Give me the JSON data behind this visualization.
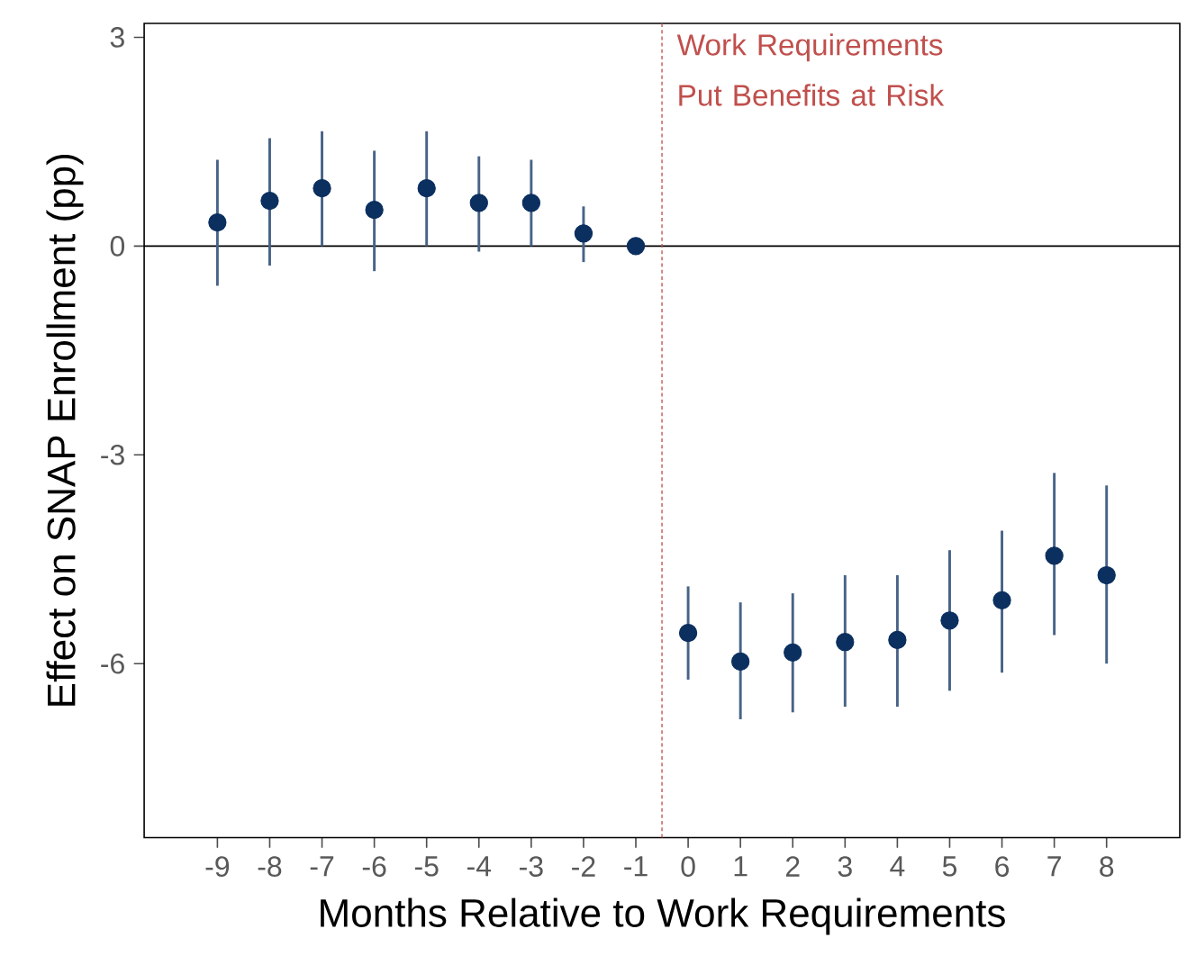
{
  "chart_data": {
    "type": "scatter",
    "xlabel": "Months Relative to Work Requirements",
    "ylabel": "Effect on SNAP Enrollment (pp)",
    "x": [
      -9,
      -8,
      -7,
      -6,
      -5,
      -4,
      -3,
      -2,
      -1,
      0,
      1,
      2,
      3,
      4,
      5,
      6,
      7,
      8
    ],
    "series": [
      {
        "color": "#0b2f5f",
        "values": [
          0.34,
          0.65,
          0.83,
          0.52,
          0.83,
          0.62,
          0.62,
          0.18,
          0,
          -5.56,
          -5.97,
          -5.84,
          -5.69,
          -5.66,
          -5.38,
          -5.09,
          -4.45,
          -4.73
        ],
        "errors": [
          [
            -0.57,
            1.24
          ],
          [
            -0.28,
            1.55
          ],
          [
            0,
            1.65
          ],
          [
            -0.36,
            1.37
          ],
          [
            0,
            1.65
          ],
          [
            -0.08,
            1.29
          ],
          [
            0,
            1.24
          ],
          [
            -0.23,
            0.57
          ],
          null,
          [
            -6.23,
            -4.89
          ],
          [
            -6.8,
            -5.12
          ],
          [
            -6.7,
            -4.99
          ],
          [
            -6.62,
            -4.73
          ],
          [
            -6.62,
            -4.73
          ],
          [
            -6.39,
            -4.37
          ],
          [
            -6.13,
            -4.09
          ],
          [
            -5.59,
            -3.26
          ],
          [
            -6.0,
            -3.44
          ]
        ]
      }
    ],
    "xlim": [
      -10.4,
      9.4
    ],
    "ylim": [
      -8.5,
      3.2
    ],
    "xticks": [
      -9,
      -8,
      -7,
      -6,
      -5,
      -4,
      -3,
      -2,
      -1,
      0,
      1,
      2,
      3,
      4,
      5,
      6,
      7,
      8
    ],
    "yticks": [
      3,
      0,
      -3,
      -6
    ],
    "ref_lines": [
      {
        "axis": "y",
        "value": 0,
        "color": "#000000",
        "line_style": "solid"
      },
      {
        "axis": "x",
        "value": -0.5,
        "color": "#c0504d",
        "line_style": "dashed",
        "label": "Work Requirements Put Benefits at Risk"
      }
    ],
    "marker": "circle"
  }
}
